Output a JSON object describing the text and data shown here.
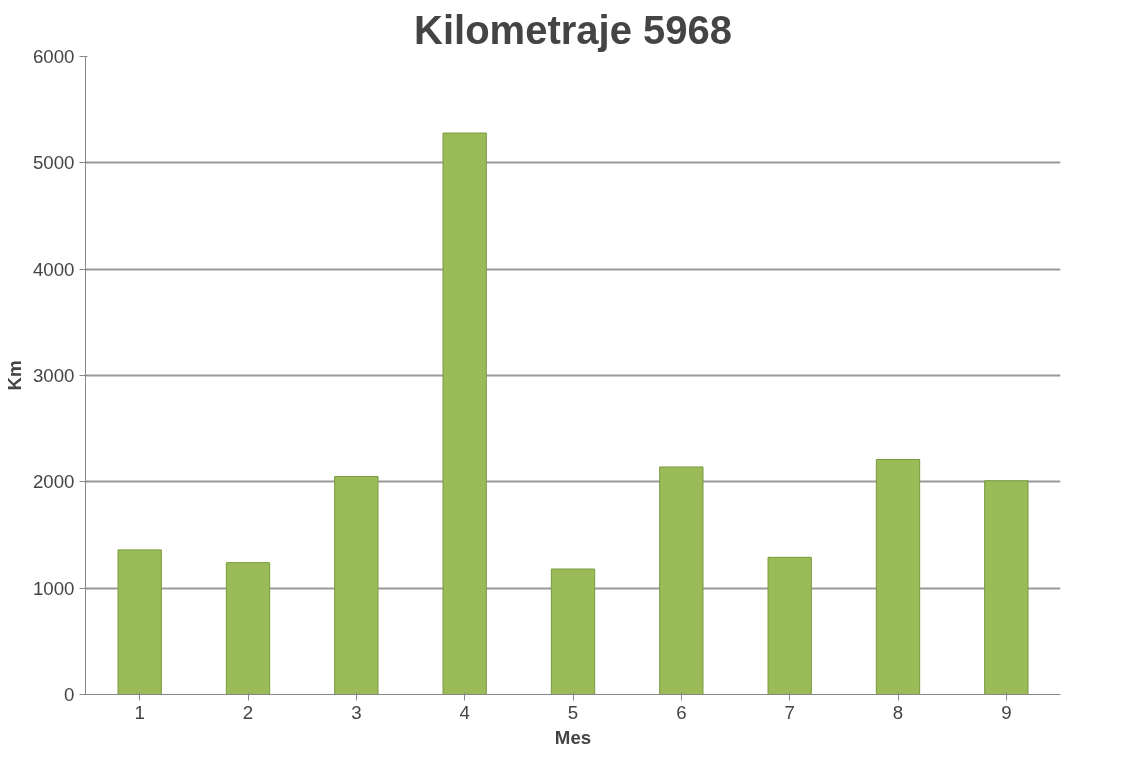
{
  "chart_data": {
    "type": "bar",
    "title": "Kilometraje 5968",
    "xlabel": "Mes",
    "ylabel": "Km",
    "categories": [
      "1",
      "2",
      "3",
      "4",
      "5",
      "6",
      "7",
      "8",
      "9"
    ],
    "values": [
      1360,
      1240,
      2050,
      5280,
      1180,
      2140,
      1290,
      2210,
      2010
    ],
    "color": "#9bbb59",
    "ylim": [
      0,
      6000
    ],
    "yticks": [
      0,
      1000,
      2000,
      3000,
      4000,
      5000,
      6000
    ],
    "grid": "y"
  }
}
